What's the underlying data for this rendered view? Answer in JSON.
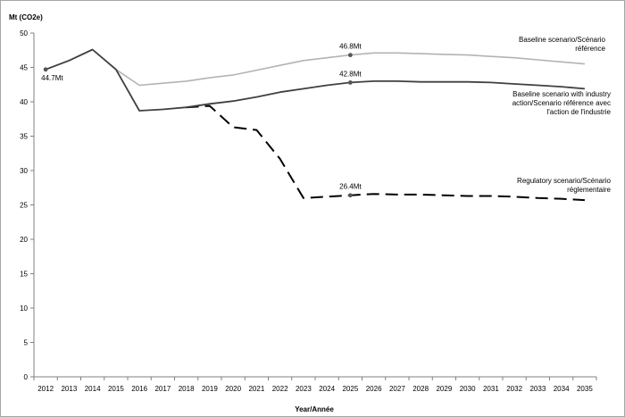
{
  "chart_data": {
    "type": "line",
    "title": "",
    "ylabel": "Mt (CO2e)",
    "xlabel": "Year/Année",
    "ylim": [
      0,
      50
    ],
    "yticks": [
      0,
      5,
      10,
      15,
      20,
      25,
      30,
      35,
      40,
      45,
      50
    ],
    "grid": false,
    "categories": [
      "2012",
      "2013",
      "2014",
      "2015",
      "2016",
      "2017",
      "2018",
      "2019",
      "2020",
      "2021",
      "2022",
      "2023",
      "2024",
      "2025",
      "2026",
      "2027",
      "2028",
      "2029",
      "2030",
      "2031",
      "2032",
      "2033",
      "2034",
      "2035"
    ],
    "series": [
      {
        "name": "Baseline scenario/Scénario référence",
        "label_lines": [
          "Baseline scenario/Scénario",
          "référence"
        ],
        "color": "#b3b3b3",
        "style": "solid",
        "values": [
          44.7,
          46.0,
          47.6,
          44.7,
          42.4,
          42.7,
          43.0,
          43.5,
          43.9,
          44.6,
          45.3,
          46.0,
          46.4,
          46.8,
          47.1,
          47.1,
          47.0,
          46.9,
          46.8,
          46.6,
          46.4,
          46.1,
          45.8,
          45.5
        ]
      },
      {
        "name": "Baseline scenario with industry action/Scenario référence avec l'action de l'industrie",
        "label_lines": [
          "Baseline scenario with industry",
          "action/Scenario référence avec",
          "l'action de l'industrie"
        ],
        "color": "#404040",
        "style": "solid",
        "values": [
          44.7,
          46.0,
          47.6,
          44.7,
          38.7,
          38.9,
          39.2,
          39.7,
          40.1,
          40.7,
          41.4,
          41.9,
          42.4,
          42.8,
          43.0,
          43.0,
          42.9,
          42.9,
          42.9,
          42.8,
          42.6,
          42.4,
          42.2,
          41.9
        ]
      },
      {
        "name": "Regulatory scenario/Scénario réglementaire",
        "label_lines": [
          "Regulatory scenario/Scénario",
          "réglementaire"
        ],
        "color": "#000000",
        "style": "dashed",
        "start_index": 6,
        "values": [
          null,
          null,
          null,
          null,
          null,
          null,
          39.2,
          39.4,
          36.3,
          35.9,
          31.7,
          26.0,
          26.2,
          26.4,
          26.6,
          26.5,
          26.5,
          26.4,
          26.3,
          26.3,
          26.2,
          26.0,
          25.9,
          25.7
        ]
      }
    ],
    "annotations": [
      {
        "text": "44.7Mt",
        "series": 1,
        "index": 0
      },
      {
        "text": "46.8Mt",
        "series": 0,
        "index": 13
      },
      {
        "text": "42.8Mt",
        "series": 1,
        "index": 13
      },
      {
        "text": "26.4Mt",
        "series": 2,
        "index": 13
      }
    ]
  }
}
